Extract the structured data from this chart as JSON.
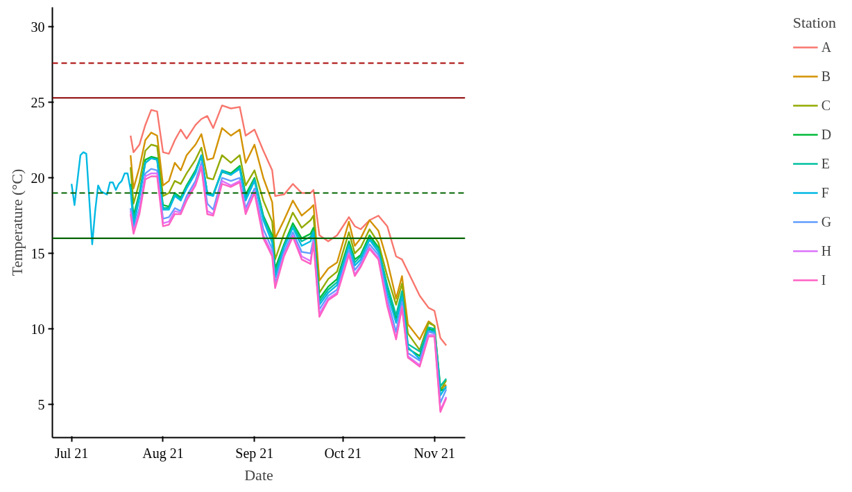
{
  "chart_data": {
    "type": "line",
    "xlabel": "Date",
    "ylabel": "Temperature (°C)",
    "legend_title": "Station",
    "legend": "right",
    "grid": false,
    "line_style": "solid",
    "marker": "none",
    "x": [
      "2021-07-21",
      "2021-07-22",
      "2021-07-24",
      "2021-07-26",
      "2021-07-28",
      "2021-07-30",
      "2021-08-01",
      "2021-08-03",
      "2021-08-05",
      "2021-08-07",
      "2021-08-09",
      "2021-08-12",
      "2021-08-14",
      "2021-08-16",
      "2021-08-18",
      "2021-08-21",
      "2021-08-24",
      "2021-08-27",
      "2021-08-29",
      "2021-09-01",
      "2021-09-04",
      "2021-09-07",
      "2021-09-08",
      "2021-09-11",
      "2021-09-14",
      "2021-09-17",
      "2021-09-20",
      "2021-09-21",
      "2021-09-23",
      "2021-09-26",
      "2021-09-29",
      "2021-10-03",
      "2021-10-05",
      "2021-10-07",
      "2021-10-10",
      "2021-10-13",
      "2021-10-16",
      "2021-10-19",
      "2021-10-21",
      "2021-10-23",
      "2021-10-27",
      "2021-10-30",
      "2021-11-01",
      "2021-11-03",
      "2021-11-05"
    ],
    "xlim": [
      "2021-06-24T12:00",
      "2021-11-11T10:00"
    ],
    "xticks": [
      {
        "value": "2021-07-01",
        "label": "Jul 21"
      },
      {
        "value": "2021-08-01",
        "label": "Aug 21"
      },
      {
        "value": "2021-09-01",
        "label": "Sep 21"
      },
      {
        "value": "2021-10-01",
        "label": "Oct 21"
      },
      {
        "value": "2021-11-01",
        "label": "Nov 21"
      }
    ],
    "ylim": [
      2.8,
      31.3
    ],
    "yticks": [
      5,
      10,
      15,
      20,
      25,
      30
    ],
    "ref_lines": [
      {
        "axis": "y",
        "value": 27.6,
        "color": "#b22222",
        "line_style": "dashed"
      },
      {
        "axis": "y",
        "value": 25.3,
        "color": "#8b0000",
        "line_style": "solid"
      },
      {
        "axis": "y",
        "value": 19,
        "color": "#006400",
        "line_style": "dashed"
      },
      {
        "axis": "y",
        "value": 16,
        "color": "#006400",
        "line_style": "solid"
      }
    ],
    "series": [
      {
        "name": "A",
        "color": "#f8766d",
        "values": [
          22.8,
          21.7,
          22.2,
          23.5,
          24.5,
          24.4,
          21.7,
          21.6,
          22.5,
          23.2,
          22.6,
          23.5,
          23.9,
          24.1,
          23.3,
          24.8,
          24.6,
          24.7,
          22.8,
          23.2,
          21.8,
          20.5,
          18.8,
          18.9,
          19.6,
          19.0,
          19.0,
          19.2,
          16.2,
          15.8,
          16.2,
          17.4,
          16.8,
          16.6,
          17.2,
          17.5,
          16.8,
          14.8,
          14.6,
          13.8,
          12.2,
          11.4,
          11.2,
          9.4,
          8.9
        ]
      },
      {
        "name": "B",
        "color": "#d39200",
        "values": [
          21.5,
          19.3,
          20.7,
          22.5,
          23.0,
          22.8,
          19.5,
          19.8,
          21.0,
          20.5,
          21.5,
          22.2,
          22.9,
          21.2,
          21.3,
          23.3,
          22.8,
          23.2,
          21.0,
          22.2,
          20.0,
          18.4,
          16.0,
          17.2,
          18.5,
          17.5,
          18.0,
          18.2,
          13.2,
          14.0,
          14.4,
          17.1,
          15.5,
          16.0,
          17.2,
          16.5,
          14.5,
          12.0,
          13.5,
          10.3,
          9.3,
          10.5,
          10.2,
          6.0,
          6.3
        ]
      },
      {
        "name": "C",
        "color": "#93aa00",
        "values": [
          20.7,
          18.3,
          19.7,
          21.8,
          22.2,
          22.1,
          18.8,
          19.0,
          19.8,
          19.6,
          20.3,
          21.2,
          22.0,
          20.0,
          19.9,
          21.5,
          21.0,
          21.5,
          19.5,
          20.5,
          18.5,
          17.1,
          14.6,
          16.3,
          17.7,
          16.7,
          17.2,
          17.5,
          12.4,
          13.3,
          13.8,
          16.4,
          15.0,
          15.4,
          16.6,
          15.7,
          13.5,
          11.6,
          13.0,
          9.7,
          8.6,
          10.4,
          10.2,
          5.9,
          6.6
        ]
      },
      {
        "name": "D",
        "color": "#00ba38",
        "values": [
          19.6,
          17.5,
          19.0,
          21.2,
          21.4,
          21.3,
          18.2,
          18.1,
          19.0,
          18.7,
          19.5,
          20.5,
          21.5,
          19.0,
          18.9,
          20.5,
          20.3,
          20.8,
          18.9,
          20.0,
          17.5,
          16.2,
          14.0,
          15.6,
          17.0,
          16.0,
          16.3,
          16.7,
          12.0,
          12.8,
          13.3,
          15.8,
          14.6,
          14.9,
          16.2,
          15.4,
          12.8,
          10.7,
          12.4,
          8.7,
          8.2,
          10.0,
          9.9,
          5.9,
          6.1
        ]
      },
      {
        "name": "E",
        "color": "#00c19f",
        "values": [
          19.4,
          17.2,
          18.9,
          21.0,
          21.3,
          21.2,
          18.0,
          18.0,
          18.9,
          18.6,
          19.4,
          20.4,
          21.4,
          19.0,
          18.9,
          20.4,
          20.2,
          20.7,
          18.7,
          19.9,
          17.4,
          16.0,
          13.7,
          15.5,
          16.8,
          15.8,
          16.1,
          16.5,
          11.8,
          12.6,
          13.1,
          15.6,
          14.4,
          14.8,
          16.0,
          15.3,
          12.9,
          10.9,
          12.5,
          9.0,
          8.5,
          10.1,
          10.0,
          6.2,
          6.7
        ]
      },
      {
        "name": "F",
        "color": "#00b9e3",
        "x": [
          "2021-07-01",
          "2021-07-02",
          "2021-07-04",
          "2021-07-05",
          "2021-07-06",
          "2021-07-08",
          "2021-07-09",
          "2021-07-10",
          "2021-07-11",
          "2021-07-13",
          "2021-07-14",
          "2021-07-15",
          "2021-07-16",
          "2021-07-17",
          "2021-07-18",
          "2021-07-19",
          "2021-07-20",
          "2021-07-21",
          "2021-07-22",
          "2021-07-24",
          "2021-07-26",
          "2021-07-28",
          "2021-07-30",
          "2021-08-01",
          "2021-08-03",
          "2021-08-05",
          "2021-08-07",
          "2021-08-09",
          "2021-08-12",
          "2021-08-14",
          "2021-08-16",
          "2021-08-18",
          "2021-08-21",
          "2021-08-24",
          "2021-08-27",
          "2021-08-29",
          "2021-09-01",
          "2021-09-04",
          "2021-09-07",
          "2021-09-08",
          "2021-09-11",
          "2021-09-14",
          "2021-09-17",
          "2021-09-20",
          "2021-09-21",
          "2021-09-23",
          "2021-09-26",
          "2021-09-29",
          "2021-10-03",
          "2021-10-05",
          "2021-10-07",
          "2021-10-10",
          "2021-10-13",
          "2021-10-16",
          "2021-10-19",
          "2021-10-21",
          "2021-10-23",
          "2021-10-27",
          "2021-10-30",
          "2021-11-01",
          "2021-11-03",
          "2021-11-05"
        ],
        "values": [
          19.6,
          18.2,
          21.5,
          21.7,
          21.6,
          15.6,
          17.8,
          19.5,
          19.1,
          18.9,
          19.7,
          19.7,
          19.2,
          19.6,
          19.8,
          20.3,
          20.3,
          19.2,
          16.8,
          18.7,
          21.0,
          21.3,
          21.2,
          17.9,
          17.9,
          18.8,
          18.5,
          19.3,
          20.3,
          21.5,
          18.9,
          18.8,
          20.5,
          20.2,
          20.6,
          18.5,
          19.8,
          17.2,
          15.7,
          13.4,
          15.4,
          16.7,
          15.5,
          15.8,
          16.4,
          11.6,
          12.4,
          12.9,
          15.5,
          14.2,
          14.6,
          15.9,
          15.1,
          12.4,
          10.4,
          12.1,
          8.8,
          8.0,
          9.9,
          9.8,
          5.6,
          6.2
        ]
      },
      {
        "name": "G",
        "color": "#619cff",
        "values": [
          18.0,
          16.5,
          18.0,
          20.3,
          20.6,
          20.5,
          17.3,
          17.4,
          18.0,
          17.8,
          18.8,
          19.8,
          21.0,
          18.3,
          17.9,
          20.0,
          19.8,
          20.0,
          18.0,
          19.3,
          16.6,
          15.3,
          13.0,
          15.1,
          16.4,
          15.1,
          15.0,
          16.0,
          11.3,
          12.2,
          12.6,
          15.2,
          13.9,
          14.4,
          15.6,
          14.9,
          12.0,
          9.8,
          11.8,
          8.4,
          7.9,
          9.8,
          9.7,
          5.1,
          6.0
        ]
      },
      {
        "name": "H",
        "color": "#db72fb",
        "values": [
          17.8,
          16.4,
          17.8,
          20.1,
          20.3,
          20.3,
          17.0,
          17.1,
          17.8,
          17.7,
          18.6,
          19.6,
          20.8,
          17.8,
          17.6,
          19.8,
          19.5,
          19.8,
          17.8,
          19.1,
          16.2,
          15.0,
          12.8,
          14.9,
          16.2,
          14.8,
          14.5,
          15.8,
          11.0,
          12.0,
          12.4,
          15.0,
          13.6,
          14.2,
          15.4,
          14.7,
          11.7,
          9.4,
          11.5,
          8.2,
          7.6,
          9.6,
          9.6,
          4.6,
          5.5
        ]
      },
      {
        "name": "I",
        "color": "#ff61c3",
        "values": [
          17.6,
          16.3,
          17.6,
          19.9,
          20.1,
          20.1,
          16.8,
          16.9,
          17.6,
          17.6,
          18.5,
          19.5,
          20.7,
          17.6,
          17.5,
          19.6,
          19.4,
          19.7,
          17.6,
          19.0,
          16.0,
          14.8,
          12.7,
          14.8,
          16.1,
          14.6,
          14.3,
          15.7,
          10.8,
          11.9,
          12.3,
          14.9,
          13.5,
          14.1,
          15.3,
          14.6,
          11.5,
          9.3,
          11.4,
          8.1,
          7.5,
          9.5,
          9.5,
          4.5,
          5.4
        ]
      }
    ]
  }
}
